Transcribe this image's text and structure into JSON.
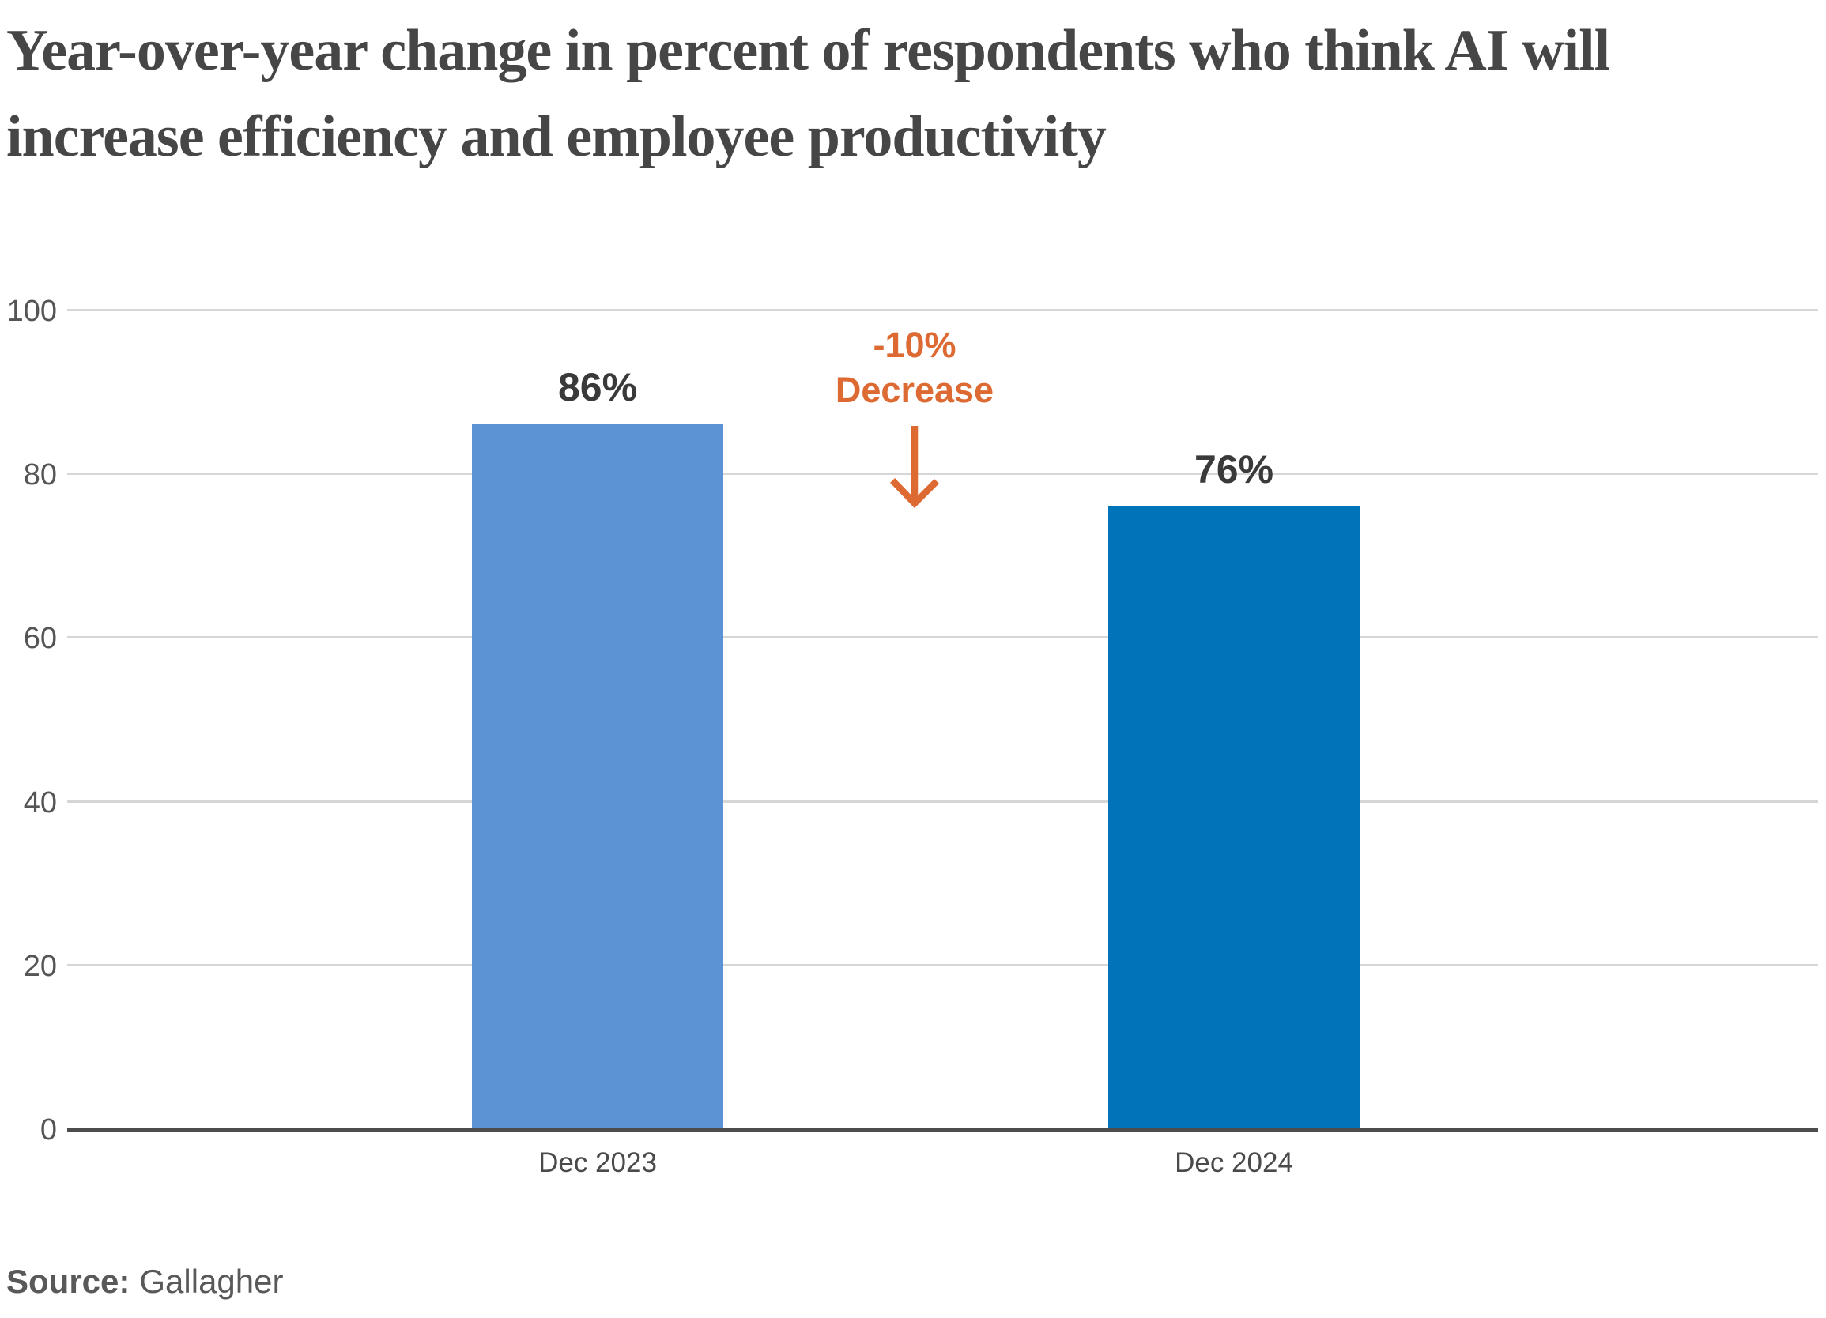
{
  "title": {
    "lines": [
      "Year-over-year change in percent of respondents who think AI will",
      "increase efficiency and employee productivity"
    ]
  },
  "chart_data": {
    "type": "bar",
    "categories": [
      "Dec 2023",
      "Dec 2024"
    ],
    "values": [
      86,
      76
    ],
    "value_labels": [
      "86%",
      "76%"
    ],
    "series_colors": [
      "#5B93D4",
      "#0073B9"
    ],
    "ylim": [
      0,
      100
    ],
    "yticks": [
      0,
      20,
      40,
      60,
      80,
      100
    ],
    "grid": "horizontal",
    "legend": "none",
    "annotation": {
      "line1": "-10%",
      "line2": "Decrease",
      "arrow": "down",
      "color": "#DE6A33"
    }
  },
  "source": {
    "label": "Source:",
    "value": "Gallagher"
  },
  "colors": {
    "background": "#FFFFFF",
    "bar_dec_2023": "#5B93D4",
    "bar_dec_2024": "#0073B9",
    "annotation_orange": "#DE6A33",
    "title_text": "#464646",
    "axis_line": "#4D4D4D",
    "gridline": "#D6D6D6",
    "tick_label": "#555555",
    "value_label": "#3A3A3A",
    "category_label": "#4A4A4A",
    "source_text": "#595959"
  }
}
